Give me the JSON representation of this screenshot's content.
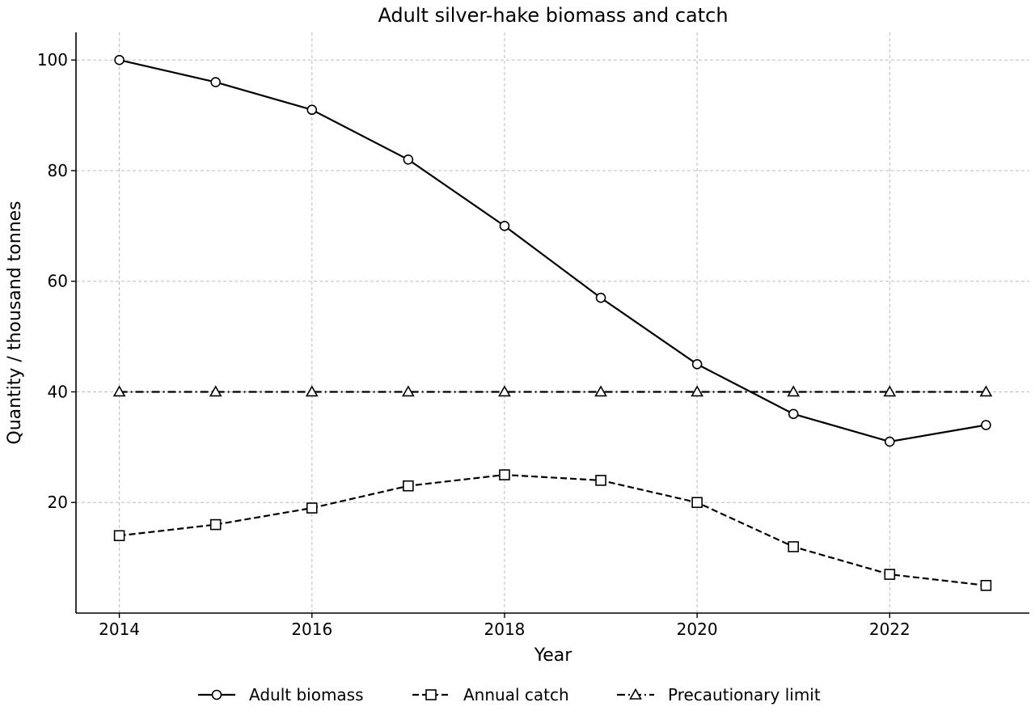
{
  "chart_data": {
    "type": "line",
    "title": "Adult silver-hake biomass and catch",
    "xlabel": "Year",
    "ylabel": "Quantity / thousand tonnes",
    "x": [
      2014,
      2015,
      2016,
      2017,
      2018,
      2019,
      2020,
      2021,
      2022,
      2023
    ],
    "xlim": [
      2013.55,
      2023.45
    ],
    "ylim": [
      0,
      105
    ],
    "x_ticks": [
      2014,
      2016,
      2018,
      2020,
      2022
    ],
    "y_ticks": [
      20,
      40,
      60,
      80,
      100
    ],
    "grid": true,
    "legend_position": "bottom-center",
    "series": [
      {
        "name": "Adult biomass",
        "values": [
          100,
          96,
          91,
          82,
          70,
          57,
          45,
          36,
          31,
          34
        ],
        "line_style": "solid",
        "marker": "circle",
        "color": "#000000"
      },
      {
        "name": "Annual catch",
        "values": [
          14,
          16,
          19,
          23,
          25,
          24,
          20,
          12,
          7,
          5
        ],
        "line_style": "dashed",
        "marker": "square",
        "color": "#000000"
      },
      {
        "name": "Precautionary limit",
        "values": [
          40,
          40,
          40,
          40,
          40,
          40,
          40,
          40,
          40,
          40
        ],
        "line_style": "dashdot",
        "marker": "triangle",
        "color": "#000000"
      }
    ]
  }
}
